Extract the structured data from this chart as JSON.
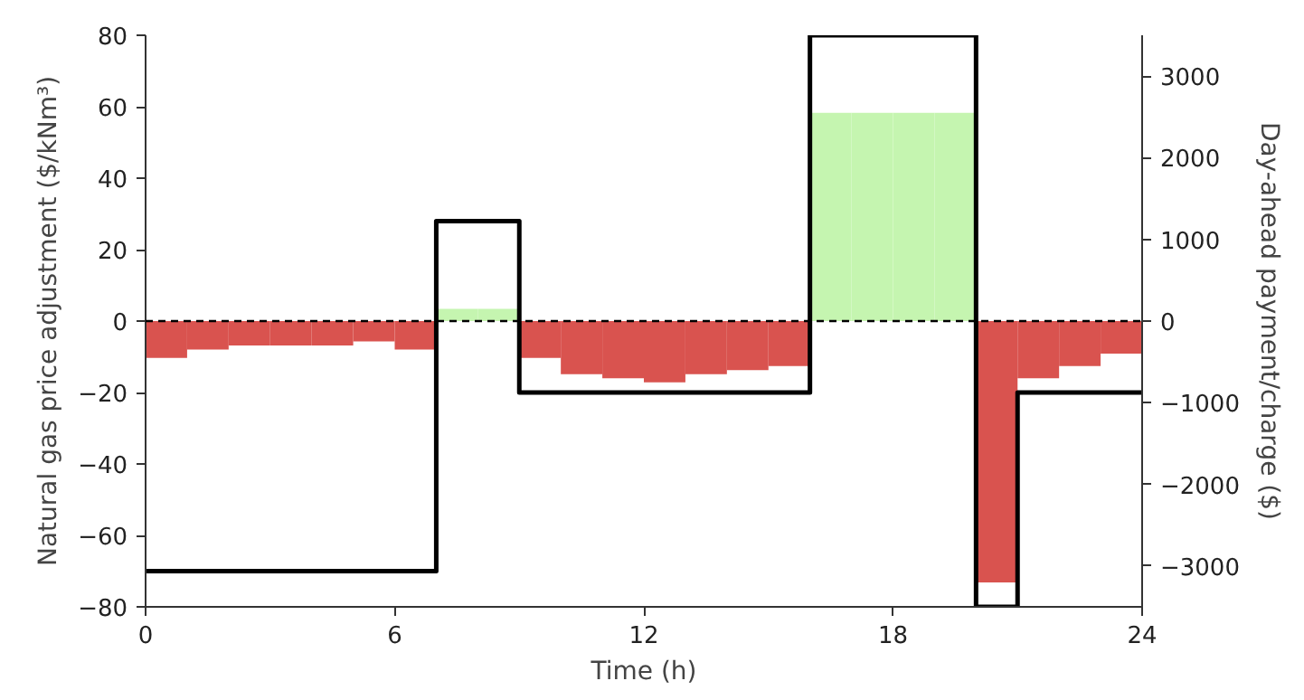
{
  "chart_data": {
    "type": "bar",
    "xlabel": "Time (h)",
    "ylabel": "Natural gas price adjustment ($/kNm³)",
    "y2label": "Day-ahead payment/charge ($)",
    "xlim": [
      0,
      24
    ],
    "xticks": [
      0,
      6,
      12,
      18,
      24
    ],
    "ylim": [
      -80,
      80
    ],
    "yticks": [
      -80,
      -60,
      -40,
      -20,
      0,
      20,
      40,
      60,
      80
    ],
    "y2lim": [
      -3500,
      3500
    ],
    "y2ticks": [
      -3000,
      -2000,
      -1000,
      0,
      1000,
      2000,
      3000
    ],
    "grid": false,
    "series": [
      {
        "axis": "y2",
        "x": [
          0.5,
          1.5,
          2.5,
          3.5,
          4.5,
          5.5,
          6.5,
          7.5,
          8.5,
          9.5,
          10.5,
          11.5,
          12.5,
          13.5,
          14.5,
          15.5,
          16.5,
          17.5,
          18.5,
          19.5,
          20.5,
          21.5,
          22.5,
          23.5
        ],
        "values": [
          -450,
          -350,
          -300,
          -300,
          -300,
          -250,
          -350,
          150,
          150,
          -450,
          -650,
          -700,
          -750,
          -650,
          -600,
          -550,
          2550,
          2550,
          2550,
          2550,
          -3200,
          -700,
          -550,
          -400
        ],
        "colors": [
          "#d9534f",
          "#d9534f",
          "#d9534f",
          "#d9534f",
          "#d9534f",
          "#d9534f",
          "#d9534f",
          "#c5f5b0",
          "#c5f5b0",
          "#d9534f",
          "#d9534f",
          "#d9534f",
          "#d9534f",
          "#d9534f",
          "#d9534f",
          "#d9534f",
          "#c5f5b0",
          "#c5f5b0",
          "#c5f5b0",
          "#c5f5b0",
          "#d9534f",
          "#d9534f",
          "#d9534f",
          "#d9534f"
        ]
      },
      {
        "type": "step",
        "axis": "y",
        "color": "#000000",
        "x": [
          0,
          7,
          9,
          16,
          20,
          21,
          24
        ],
        "values": [
          -70,
          28,
          -20,
          80,
          -80,
          -20,
          -20
        ]
      }
    ],
    "ref_lines": [
      {
        "axis": "y",
        "value": 0,
        "color": "#000000",
        "line_style": "dashed"
      }
    ]
  }
}
